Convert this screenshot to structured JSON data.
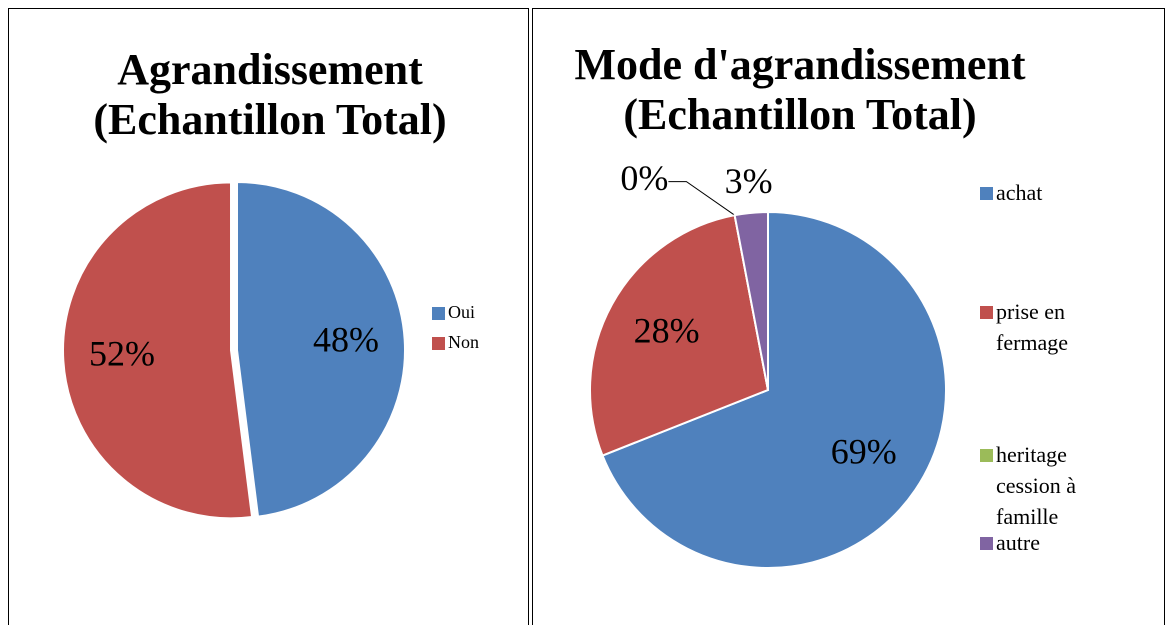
{
  "chart_data": [
    {
      "type": "pie",
      "title": "Agrandissement (Echantillon Total)",
      "categories": [
        "Oui",
        "Non"
      ],
      "values": [
        48,
        52
      ],
      "value_labels": [
        "48%",
        "52%"
      ],
      "colors": [
        "#4f81bd",
        "#c0504d"
      ],
      "legend": "right"
    },
    {
      "type": "pie",
      "title": "Mode d'agrandissement (Echantillon Total)",
      "categories": [
        "achat",
        "prise en fermage",
        "heritage cession à famille",
        "autre"
      ],
      "values": [
        69,
        28,
        0,
        3
      ],
      "value_labels": [
        "69%",
        "28%",
        "0%",
        "3%"
      ],
      "colors": [
        "#4f81bd",
        "#c0504d",
        "#9bbb59",
        "#8064a2"
      ],
      "legend": "right"
    }
  ]
}
